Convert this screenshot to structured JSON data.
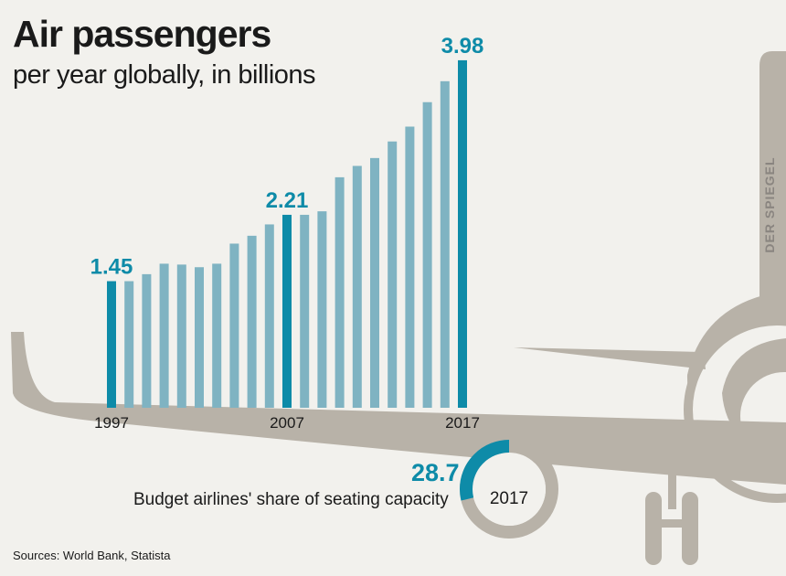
{
  "title": "Air passengers",
  "subtitle": "per year globally, in billions",
  "source": "Sources: World Bank, Statista",
  "brand": "DER SPIEGEL",
  "colors": {
    "highlight_bar": "#0e8ba8",
    "regular_bar": "#7fb3c2",
    "plane": "#b8b2a8",
    "background": "#f2f1ed"
  },
  "chart_data": [
    {
      "type": "bar",
      "title": "Air passengers",
      "subtitle": "per year globally, in billions",
      "xlabel": "",
      "ylabel": "",
      "x_tick_labels": [
        "1997",
        "2007",
        "2017"
      ],
      "categories": [
        "1997",
        "1998",
        "1999",
        "2000",
        "2001",
        "2002",
        "2003",
        "2004",
        "2005",
        "2006",
        "2007",
        "2008",
        "2009",
        "2010",
        "2011",
        "2012",
        "2013",
        "2014",
        "2015",
        "2016",
        "2017"
      ],
      "values": [
        1.45,
        1.45,
        1.53,
        1.65,
        1.64,
        1.61,
        1.65,
        1.88,
        1.97,
        2.1,
        2.21,
        2.21,
        2.25,
        2.64,
        2.77,
        2.86,
        3.05,
        3.22,
        3.5,
        3.74,
        3.98
      ],
      "data_labels": [
        {
          "category": "1997",
          "label": "1.45"
        },
        {
          "category": "2007",
          "label": "2.21"
        },
        {
          "category": "2017",
          "label": "3.98"
        }
      ],
      "highlighted": [
        "1997",
        "2007",
        "2017"
      ],
      "ylim": [
        0,
        4.2
      ],
      "grid": false,
      "legend": "none"
    },
    {
      "type": "pie",
      "title": "Budget airlines' share of seating capacity",
      "center_label": "2017",
      "values": [
        28.7,
        71.3
      ],
      "value_label": "28.7",
      "highlighted_slice": 0
    }
  ]
}
